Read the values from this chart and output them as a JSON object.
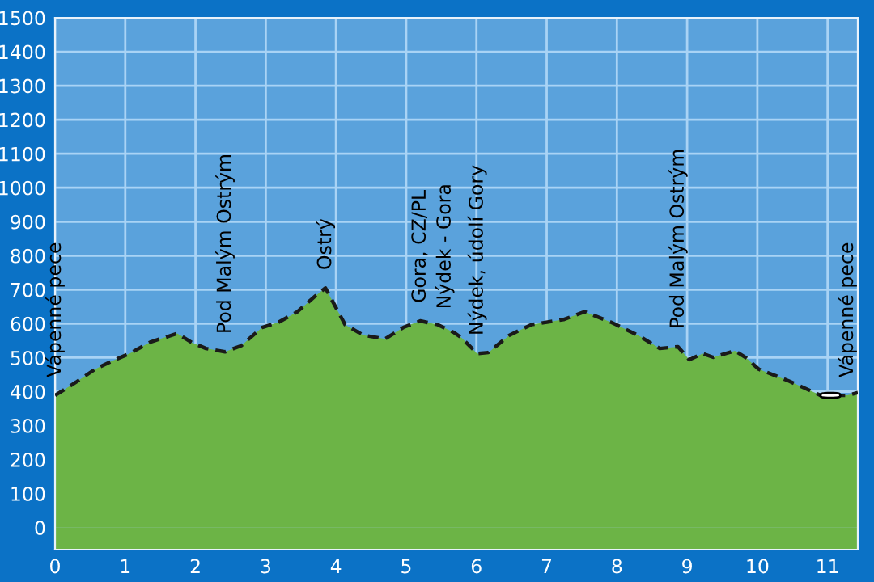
{
  "chart_data": {
    "type": "area",
    "x": [
      0,
      0.3,
      0.57,
      0.8,
      1.06,
      1.36,
      1.74,
      1.96,
      2.15,
      2.42,
      2.65,
      2.95,
      3.18,
      3.45,
      3.71,
      3.85,
      4.13,
      4.39,
      4.7,
      4.96,
      5.2,
      5.45,
      5.68,
      5.79,
      6.01,
      6.17,
      6.47,
      6.78,
      7.24,
      7.54,
      7.92,
      8.3,
      8.61,
      8.87,
      9.03,
      9.22,
      9.37,
      9.68,
      9.83,
      10.02,
      10.44,
      10.9,
      11.28,
      11.43
    ],
    "series": [
      {
        "color": "#6cb446",
        "values": [
          389,
          428,
          466,
          489,
          512,
          546,
          571,
          543,
          527,
          517,
          535,
          589,
          604,
          635,
          682,
          705,
          597,
          566,
          555,
          589,
          608,
          597,
          574,
          558,
          512,
          515,
          566,
          597,
          612,
          635,
          604,
          566,
          527,
          532,
          494,
          512,
          501,
          520,
          501,
          466,
          432,
          389,
          389,
          397
        ]
      }
    ],
    "xlim": [
      0,
      11.43
    ],
    "ylim": [
      -65,
      1500
    ],
    "xticks": [
      0,
      1,
      2,
      3,
      4,
      5,
      6,
      7,
      8,
      9,
      10,
      11
    ],
    "yticks": [
      0,
      100,
      200,
      300,
      400,
      500,
      600,
      700,
      800,
      900,
      1000,
      1100,
      1200,
      1300,
      1400,
      1500
    ],
    "bands": [
      {
        "axis": "y",
        "from": -65,
        "to": 0,
        "color": "#6cb446"
      }
    ],
    "grid": true,
    "line_style": "dashed",
    "marker": "none",
    "annotations": [
      {
        "text": "Vápenné pece",
        "x": 0,
        "y": 389
      },
      {
        "text": "Pod Malým Ostrým",
        "x": 2.42,
        "y": 517
      },
      {
        "text": "Ostrý",
        "x": 3.85,
        "y": 705
      },
      {
        "text": "Gora, CZ/PL",
        "x": 5.2,
        "y": 608
      },
      {
        "text": "Nýdek - Gora",
        "x": 5.55,
        "y": 590
      },
      {
        "text": "Nýdek, údolí Gory",
        "x": 6.01,
        "y": 512
      },
      {
        "text": "Pod Malým Ostrým",
        "x": 8.87,
        "y": 532
      },
      {
        "text": "Vápenné pece",
        "x": 11.28,
        "y": 389
      }
    ]
  }
}
